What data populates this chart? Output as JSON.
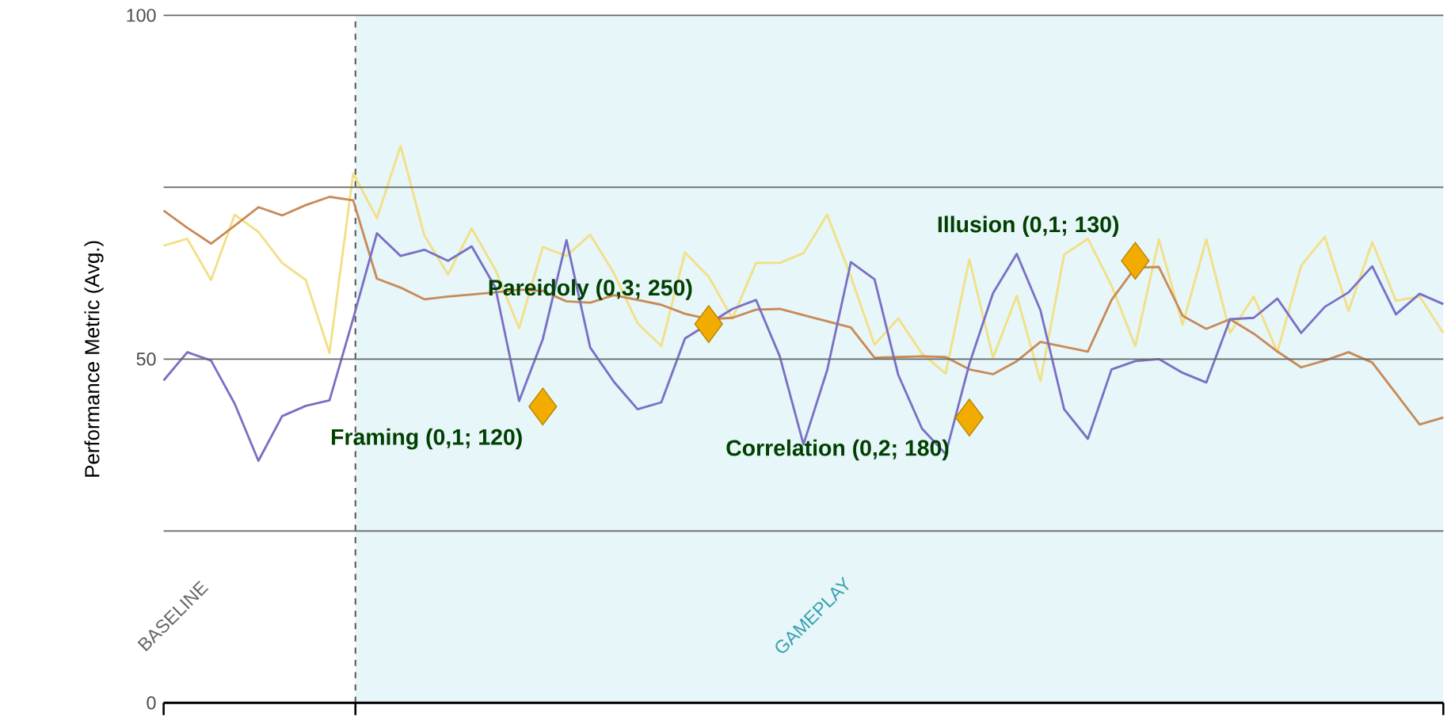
{
  "chart_data": {
    "type": "line",
    "ylabel": "Performance Metric (Avg.)",
    "categories": [
      null,
      null,
      null,
      null,
      null,
      null,
      null,
      null,
      null,
      null,
      null,
      null,
      null,
      null,
      null,
      null,
      null,
      null,
      null,
      null,
      null,
      null,
      null,
      null,
      null,
      null,
      null,
      null,
      null,
      null,
      null,
      null,
      null,
      null,
      null,
      null,
      null,
      null,
      null,
      null,
      null,
      null,
      null,
      null,
      null,
      null,
      null,
      null,
      null,
      null,
      null,
      null,
      null,
      null,
      null
    ],
    "ylim": [
      0,
      100
    ],
    "yticks": [
      0,
      {
        "value": 25,
        "label": null
      },
      50,
      {
        "value": 75,
        "label": null
      },
      100
    ],
    "tick_labels": "y",
    "grid": "y",
    "marker": "none",
    "annotations": [
      "Framing (0,1; 120)",
      "Pareidoly (0,3; 250)",
      "Correlation (0,2; 180)",
      "Illusion (0,1; 130)",
      "BASELINE",
      "GAMEPLAY"
    ],
    "series": [
      {
        "color": "#f3df85",
        "values": [
          66.5,
          67.5,
          61.5,
          71.0,
          68.5,
          64.0,
          61.5,
          50.9,
          77.0,
          70.5,
          81.0,
          68.0,
          62.3,
          69.0,
          63.0,
          54.5,
          66.3,
          65.0,
          68.1,
          62.5,
          55.2,
          51.9,
          65.5,
          62.0,
          55.9,
          64.0,
          64.0,
          65.4,
          71.0,
          62.0,
          52.1,
          55.9,
          50.8,
          47.9,
          64.5,
          50.2,
          59.2,
          46.8,
          65.2,
          67.5,
          60.7,
          51.9,
          67.4,
          55.0,
          67.4,
          53.8,
          59.1,
          51.0,
          63.6,
          67.8,
          57.0,
          67.0,
          58.5,
          59.1,
          53.8
        ]
      },
      {
        "color": "#c98a57",
        "values": [
          71.6,
          69.1,
          66.8,
          69.4,
          72.1,
          70.9,
          72.4,
          73.6,
          73.1,
          61.7,
          60.4,
          58.7,
          59.1,
          59.4,
          59.7,
          60.1,
          59.9,
          58.4,
          58.2,
          59.3,
          58.6,
          57.9,
          56.6,
          55.8,
          56.0,
          57.2,
          57.3,
          56.4,
          55.5,
          54.6,
          50.2,
          50.3,
          50.4,
          50.3,
          48.5,
          47.8,
          49.7,
          52.5,
          51.8,
          51.1,
          58.6,
          63.3,
          63.4,
          56.3,
          54.4,
          55.8,
          53.7,
          51.1,
          48.8,
          49.8,
          51.0,
          49.5,
          45.0,
          40.5,
          41.5
        ]
      },
      {
        "color": "#7a70c4",
        "values": [
          46.9,
          51.0,
          49.8,
          43.5,
          35.2,
          41.7,
          43.2,
          44.0,
          55.9,
          68.3,
          65.0,
          65.9,
          64.3,
          66.4,
          60.4,
          43.9,
          52.9,
          67.3,
          51.7,
          46.7,
          42.7,
          43.7,
          53.0,
          null,
          57.3,
          58.6,
          50.4,
          37.6,
          48.4,
          64.1,
          61.6,
          47.7,
          39.9,
          36.2,
          49.3,
          59.6,
          65.3,
          57.1,
          42.7,
          38.4,
          48.5,
          49.7,
          50.0,
          48.0,
          46.6,
          55.8,
          56.0,
          58.8,
          53.8,
          57.6,
          59.7,
          63.5,
          56.5,
          59.5,
          58.0
        ]
      },
      {
        "type": "scatter",
        "marker": "diamond",
        "color": "#f2ac00",
        "values": [
          null,
          null,
          null,
          null,
          null,
          null,
          null,
          null,
          null,
          null,
          null,
          null,
          null,
          null,
          null,
          null,
          43.1,
          null,
          null,
          null,
          null,
          null,
          null,
          55.1,
          null,
          null,
          null,
          null,
          null,
          null,
          null,
          null,
          null,
          null,
          41.5,
          null,
          null,
          null,
          null,
          null,
          null,
          64.3,
          null,
          null,
          null,
          null,
          null,
          null,
          null,
          null,
          null,
          null,
          null,
          null,
          null
        ]
      }
    ]
  }
}
